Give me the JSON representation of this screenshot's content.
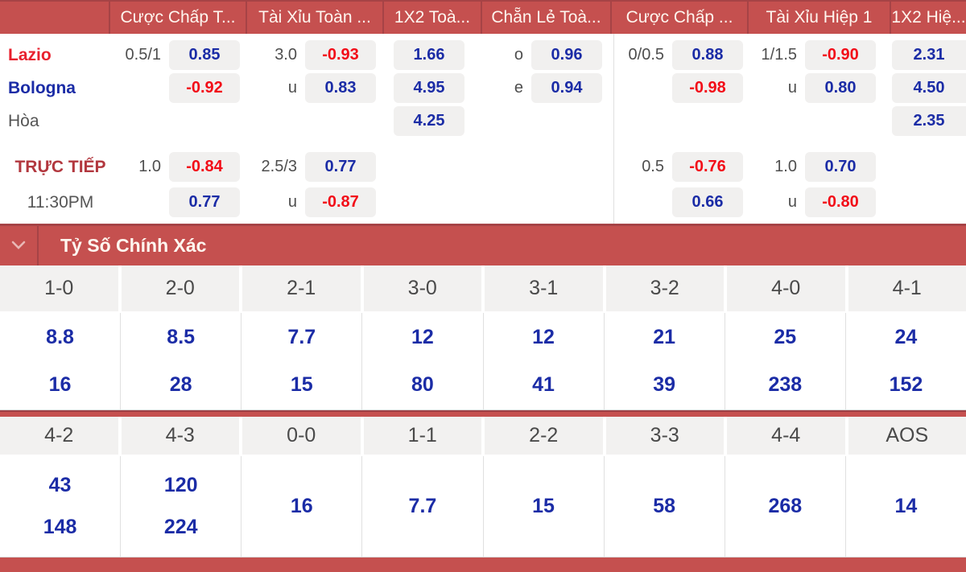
{
  "colors": {
    "bar_red": "#c5504f",
    "bar_red_dark": "#a64346",
    "odds_blue": "#1b2ca6",
    "odds_negative_red": "#f20d18",
    "team_lazio_red": "#e8212e",
    "team_bologna_blue": "#1b2ca6",
    "live_label_red": "#b2373e",
    "muted_text": "#4e4e4e",
    "box_bg": "#f1f0ef",
    "header_text": "#fff6ef",
    "grid_header_bg": "#f2f1f0",
    "divider_gray": "#e0e0e0"
  },
  "odds_table": {
    "column_headers": [
      "",
      "Cược Chấp T...",
      "Tài Xỉu Toàn ...",
      "1X2 Toà...",
      "Chẵn Lẻ Toà...",
      "Cược Chấp ...",
      "Tài Xỉu Hiệp 1",
      "1X2 Hiệ..."
    ],
    "rows": [
      {
        "label": "Lazio",
        "style": "team-home",
        "centered": false,
        "cells": [
          {
            "ratio": "0.5/1",
            "odd": "0.85"
          },
          {
            "ratio": "3.0",
            "odd": "-0.93"
          },
          {
            "ratio": "",
            "odd": "1.66"
          },
          {
            "ratio": "o",
            "odd": "0.96"
          },
          {
            "ratio": "0/0.5",
            "odd": "0.88"
          },
          {
            "ratio": "1/1.5",
            "odd": "-0.90"
          },
          {
            "ratio": "",
            "odd": "2.31"
          }
        ]
      },
      {
        "label": "Bologna",
        "style": "team-away",
        "centered": false,
        "cells": [
          {
            "ratio": "",
            "odd": "-0.92"
          },
          {
            "ratio": "u",
            "odd": "0.83"
          },
          {
            "ratio": "",
            "odd": "4.95"
          },
          {
            "ratio": "e",
            "odd": "0.94"
          },
          {
            "ratio": "",
            "odd": "-0.98"
          },
          {
            "ratio": "u",
            "odd": "0.80"
          },
          {
            "ratio": "",
            "odd": "4.50"
          }
        ]
      },
      {
        "label": "Hòa",
        "style": "draw-label",
        "centered": false,
        "cells": [
          null,
          null,
          {
            "ratio": "",
            "odd": "4.25"
          },
          null,
          null,
          null,
          {
            "ratio": "",
            "odd": "2.35"
          }
        ]
      },
      {
        "label": "TRỰC TIẾP",
        "style": "live-label",
        "centered": true,
        "cells": [
          {
            "ratio": "1.0",
            "odd": "-0.84"
          },
          {
            "ratio": "2.5/3",
            "odd": "0.77"
          },
          null,
          null,
          {
            "ratio": "0.5",
            "odd": "-0.76"
          },
          {
            "ratio": "1.0",
            "odd": "0.70"
          },
          null
        ]
      },
      {
        "label": "11:30PM",
        "style": "time-label",
        "centered": true,
        "cells": [
          {
            "ratio": "",
            "odd": "0.77"
          },
          {
            "ratio": "u",
            "odd": "-0.87"
          },
          null,
          null,
          {
            "ratio": "",
            "odd": "0.66"
          },
          {
            "ratio": "u",
            "odd": "-0.80"
          },
          null
        ]
      }
    ]
  },
  "correct_score": {
    "title": "Tỷ Số Chính Xác",
    "chevron_icon": "chevron-down",
    "groups": [
      {
        "columns": [
          {
            "score": "1-0",
            "odds": [
              "8.8",
              "16"
            ]
          },
          {
            "score": "2-0",
            "odds": [
              "8.5",
              "28"
            ]
          },
          {
            "score": "2-1",
            "odds": [
              "7.7",
              "15"
            ]
          },
          {
            "score": "3-0",
            "odds": [
              "12",
              "80"
            ]
          },
          {
            "score": "3-1",
            "odds": [
              "12",
              "41"
            ]
          },
          {
            "score": "3-2",
            "odds": [
              "21",
              "39"
            ]
          },
          {
            "score": "4-0",
            "odds": [
              "25",
              "238"
            ]
          },
          {
            "score": "4-1",
            "odds": [
              "24",
              "152"
            ]
          }
        ]
      },
      {
        "columns": [
          {
            "score": "4-2",
            "odds": [
              "43",
              "148"
            ]
          },
          {
            "score": "4-3",
            "odds": [
              "120",
              "224"
            ]
          },
          {
            "score": "0-0",
            "odds": [
              "16"
            ]
          },
          {
            "score": "1-1",
            "odds": [
              "7.7"
            ]
          },
          {
            "score": "2-2",
            "odds": [
              "15"
            ]
          },
          {
            "score": "3-3",
            "odds": [
              "58"
            ]
          },
          {
            "score": "4-4",
            "odds": [
              "268"
            ]
          },
          {
            "score": "AOS",
            "odds": [
              "14"
            ]
          }
        ]
      }
    ]
  }
}
